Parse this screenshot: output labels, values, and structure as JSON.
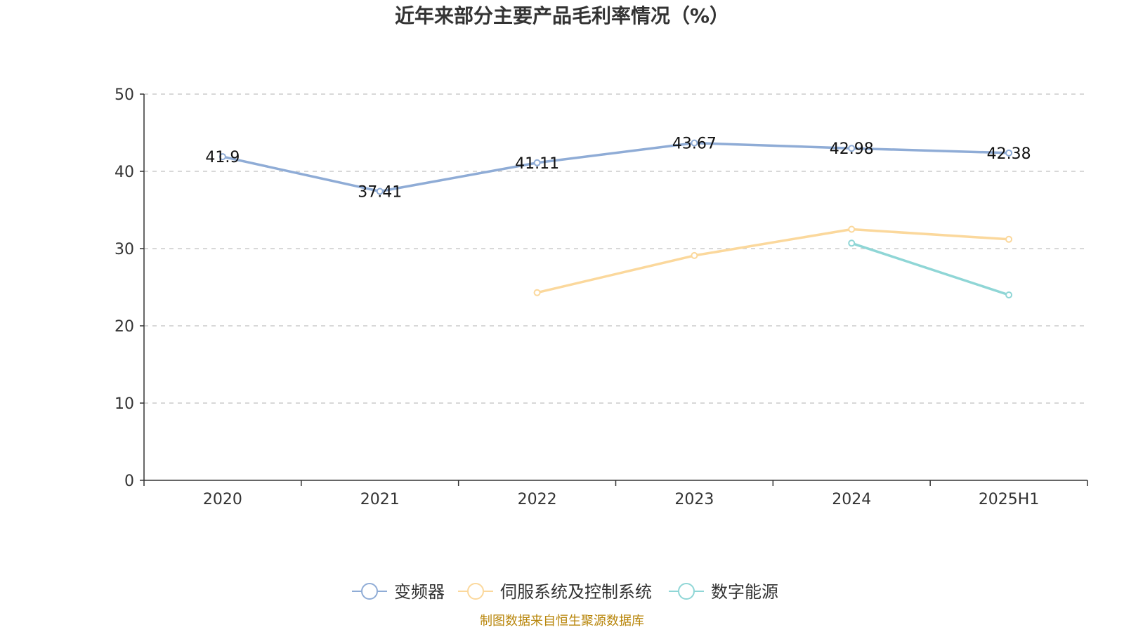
{
  "chart_data": {
    "type": "line",
    "title": "近年来部分主要产品毛利率情况（%）",
    "categories": [
      "2020",
      "2021",
      "2022",
      "2023",
      "2024",
      "2025H1"
    ],
    "ylim": [
      0,
      50
    ],
    "yticks": [
      0,
      10,
      20,
      30,
      40,
      50
    ],
    "grid": true,
    "legend_position": "bottom",
    "series": [
      {
        "name": "变频器",
        "color": "#8facd6",
        "values": [
          41.9,
          37.41,
          41.11,
          43.67,
          42.98,
          42.38
        ],
        "labels": [
          "41.9",
          "37.41",
          "41.11",
          "43.67",
          "42.98",
          "42.38"
        ]
      },
      {
        "name": "伺服系统及控制系统",
        "color": "#fbd89c",
        "values": [
          null,
          null,
          24.3,
          29.1,
          32.5,
          31.2
        ],
        "labels": []
      },
      {
        "name": "数字能源",
        "color": "#8fd6d6",
        "values": [
          null,
          null,
          null,
          null,
          30.7,
          24.0
        ],
        "labels": []
      }
    ]
  },
  "footer": {
    "source": "制图数据来自恒生聚源数据库"
  }
}
